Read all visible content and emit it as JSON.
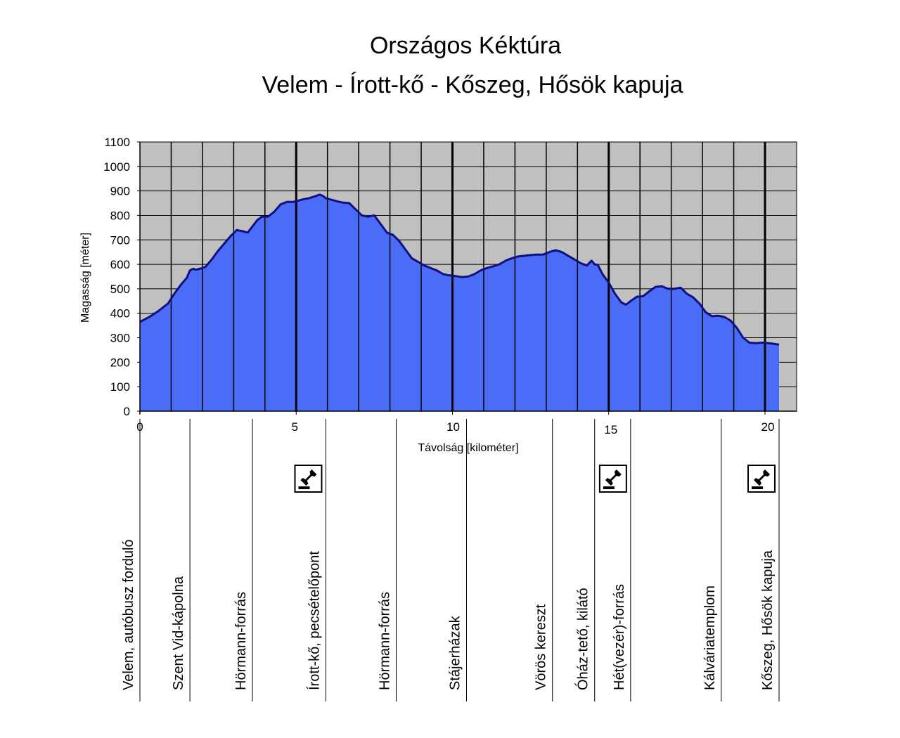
{
  "chart_data": {
    "type": "area",
    "title": "Országos Kéktúra",
    "subtitle": "Velem - Írott-kő - Kőszeg, Hősök kapuja",
    "xlabel": "Távolság [kilométer]",
    "ylabel": "Magasság [méter]",
    "xlim": [
      0,
      21
    ],
    "ylim": [
      0,
      1100
    ],
    "x_ticks": [
      0,
      5,
      10,
      15,
      20
    ],
    "x_tick_labels": [
      "0",
      "5",
      "10",
      "15",
      "20"
    ],
    "y_ticks": [
      0,
      100,
      200,
      300,
      400,
      500,
      600,
      700,
      800,
      900,
      1000,
      1100
    ],
    "y_tick_labels": [
      "0",
      "100",
      "200",
      "300",
      "400",
      "500",
      "600",
      "700",
      "800",
      "900",
      "1000",
      "1100"
    ],
    "minor_gridline_step": 1,
    "major_gridline_step": 5,
    "grid": true,
    "plot_background": "#c0c0c0",
    "fill_color": "#4a6cf7",
    "line_color": "#101080",
    "series": [
      {
        "x": [
          0,
          0.3,
          0.6,
          0.9,
          1.1,
          1.3,
          1.5,
          1.6,
          1.7,
          1.8,
          1.9,
          2.0,
          2.1,
          2.3,
          2.5,
          2.7,
          2.9,
          3.1,
          3.3,
          3.45,
          3.6,
          3.75,
          3.9,
          4.1,
          4.3,
          4.5,
          4.7,
          4.9,
          5.0,
          5.2,
          5.4,
          5.6,
          5.75,
          5.85,
          5.95,
          6.1,
          6.3,
          6.5,
          6.7,
          6.9,
          7.1,
          7.3,
          7.5,
          7.7,
          7.9,
          8.1,
          8.3,
          8.5,
          8.7,
          8.9,
          9.1,
          9.3,
          9.5,
          9.7,
          9.9,
          10.1,
          10.3,
          10.5,
          10.7,
          10.9,
          11.1,
          11.3,
          11.5,
          11.7,
          11.9,
          12.1,
          12.3,
          12.5,
          12.7,
          12.9,
          13.1,
          13.3,
          13.5,
          13.7,
          13.9,
          14.1,
          14.3,
          14.45,
          14.55,
          14.65,
          14.8,
          15.0,
          15.2,
          15.4,
          15.55,
          15.7,
          15.9,
          16.1,
          16.3,
          16.5,
          16.7,
          16.9,
          17.1,
          17.3,
          17.5,
          17.7,
          17.9,
          18.1,
          18.3,
          18.5,
          18.7,
          18.9,
          19.1,
          19.3,
          19.5,
          19.7,
          19.9,
          20.1,
          20.3,
          20.45
        ],
        "y": [
          365,
          385,
          410,
          440,
          480,
          515,
          545,
          575,
          582,
          578,
          582,
          585,
          590,
          620,
          655,
          685,
          715,
          740,
          735,
          730,
          755,
          780,
          795,
          795,
          815,
          845,
          855,
          855,
          858,
          865,
          870,
          878,
          885,
          880,
          870,
          865,
          858,
          852,
          850,
          825,
          800,
          795,
          800,
          765,
          730,
          720,
          695,
          660,
          625,
          610,
          595,
          585,
          575,
          560,
          555,
          552,
          548,
          550,
          560,
          575,
          585,
          592,
          600,
          615,
          625,
          632,
          635,
          638,
          640,
          640,
          650,
          658,
          650,
          635,
          620,
          605,
          595,
          615,
          600,
          598,
          560,
          525,
          480,
          445,
          435,
          450,
          468,
          470,
          490,
          508,
          510,
          500,
          500,
          505,
          480,
          465,
          440,
          405,
          388,
          390,
          385,
          370,
          340,
          300,
          280,
          278,
          280,
          278,
          275,
          272
        ]
      }
    ]
  },
  "waypoints": [
    {
      "label": "Velem, autóbusz forduló",
      "km": 0,
      "stamp": false
    },
    {
      "label": "Szent Vid-kápolna",
      "km": 1.6,
      "stamp": false
    },
    {
      "label": "Hörmann-forrás",
      "km": 3.6,
      "stamp": false
    },
    {
      "label": "Írott-kő, pecsételőpont",
      "km": 5.95,
      "stamp": true
    },
    {
      "label": "Hörmann-forrás",
      "km": 8.2,
      "stamp": false
    },
    {
      "label": "Stájerházak",
      "km": 10.45,
      "stamp": false
    },
    {
      "label": "Vörös kereszt",
      "km": 13.2,
      "stamp": false
    },
    {
      "label": "Óház-tető, kilátó",
      "km": 14.55,
      "stamp": false
    },
    {
      "label": "Hét(vezér)-forrás",
      "km": 15.7,
      "stamp": true
    },
    {
      "label": "Kálváriatemplom",
      "km": 18.6,
      "stamp": false
    },
    {
      "label": "Kőszeg, Hősök kapuja",
      "km": 20.45,
      "stamp": true
    }
  ],
  "icons": {
    "stamp": "rubber-stamp-icon"
  }
}
